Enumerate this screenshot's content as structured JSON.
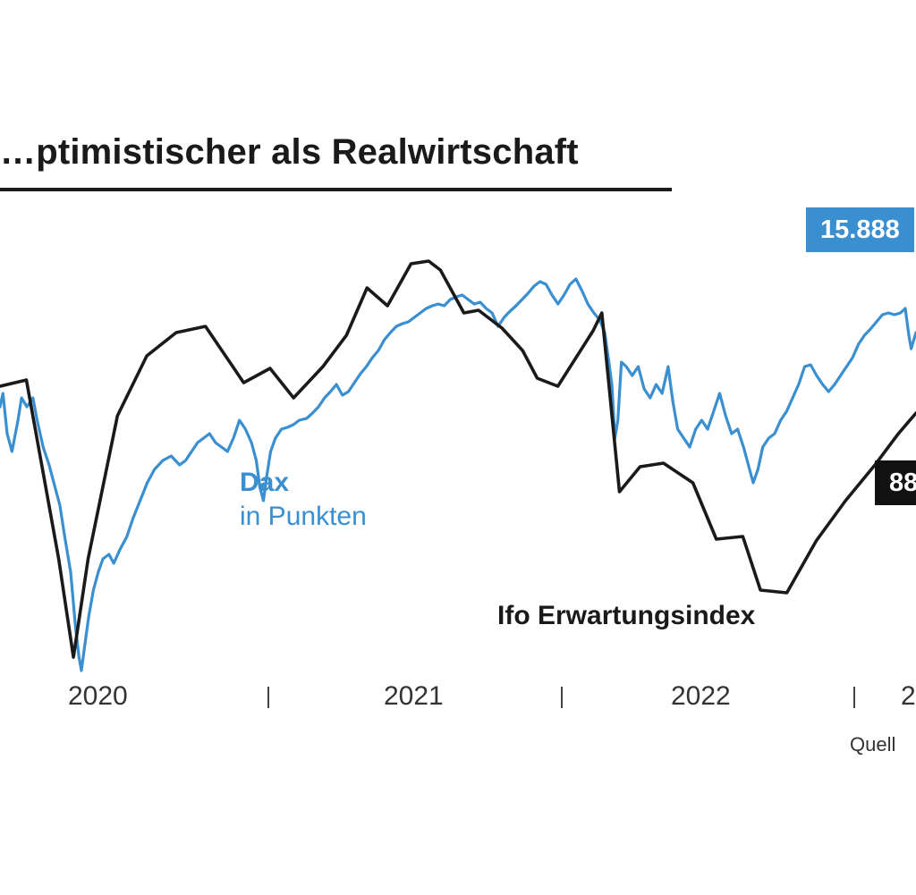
{
  "chart_data": {
    "type": "line",
    "title": "…ptimistischer als Realwirtschaft",
    "x_range": [
      "2019-12",
      "2023-01"
    ],
    "x_tick_labels": [
      "2020",
      "2021",
      "2022",
      "2"
    ],
    "xlabel": "",
    "ylabel": "",
    "series": [
      {
        "name": "Dax",
        "unit": "in Punkten",
        "color": "#3a8fd0",
        "end_label": "15.888",
        "points": [
          [
            0.0,
            455
          ],
          [
            0.05,
            440
          ],
          [
            0.12,
            485
          ],
          [
            0.2,
            505
          ],
          [
            0.3,
            470
          ],
          [
            0.36,
            445
          ],
          [
            0.45,
            455
          ],
          [
            0.55,
            445
          ],
          [
            0.62,
            470
          ],
          [
            0.72,
            500
          ],
          [
            0.82,
            520
          ],
          [
            0.9,
            540
          ],
          [
            1.0,
            565
          ],
          [
            1.08,
            600
          ],
          [
            1.18,
            640
          ],
          [
            1.26,
            700
          ],
          [
            1.32,
            735
          ],
          [
            1.36,
            750
          ],
          [
            1.42,
            720
          ],
          [
            1.48,
            690
          ],
          [
            1.56,
            660
          ],
          [
            1.64,
            640
          ],
          [
            1.72,
            625
          ],
          [
            1.82,
            620
          ],
          [
            1.9,
            630
          ],
          [
            2.0,
            615
          ],
          [
            2.12,
            600
          ],
          [
            2.22,
            580
          ],
          [
            2.34,
            560
          ],
          [
            2.46,
            540
          ],
          [
            2.58,
            525
          ],
          [
            2.72,
            515
          ],
          [
            2.86,
            510
          ],
          [
            3.0,
            520
          ],
          [
            3.1,
            515
          ],
          [
            3.2,
            505
          ],
          [
            3.3,
            495
          ],
          [
            3.4,
            490
          ],
          [
            3.5,
            485
          ],
          [
            3.6,
            495
          ],
          [
            3.7,
            500
          ],
          [
            3.8,
            505
          ],
          [
            3.9,
            490
          ],
          [
            4.0,
            470
          ],
          [
            4.1,
            480
          ],
          [
            4.2,
            495
          ],
          [
            4.28,
            515
          ],
          [
            4.34,
            545
          ],
          [
            4.4,
            560
          ],
          [
            4.45,
            535
          ],
          [
            4.52,
            505
          ],
          [
            4.6,
            490
          ],
          [
            4.7,
            480
          ],
          [
            4.8,
            478
          ],
          [
            4.9,
            475
          ],
          [
            5.0,
            470
          ],
          [
            5.12,
            468
          ],
          [
            5.22,
            462
          ],
          [
            5.32,
            455
          ],
          [
            5.42,
            445
          ],
          [
            5.52,
            438
          ],
          [
            5.62,
            430
          ],
          [
            5.72,
            442
          ],
          [
            5.82,
            438
          ],
          [
            5.92,
            428
          ],
          [
            6.02,
            418
          ],
          [
            6.12,
            410
          ],
          [
            6.22,
            400
          ],
          [
            6.32,
            392
          ],
          [
            6.42,
            380
          ],
          [
            6.52,
            372
          ],
          [
            6.62,
            365
          ],
          [
            6.72,
            362
          ],
          [
            6.82,
            360
          ],
          [
            6.92,
            355
          ],
          [
            7.02,
            350
          ],
          [
            7.12,
            345
          ],
          [
            7.22,
            342
          ],
          [
            7.32,
            340
          ],
          [
            7.42,
            342
          ],
          [
            7.52,
            335
          ],
          [
            7.62,
            332
          ],
          [
            7.72,
            330
          ],
          [
            7.82,
            335
          ],
          [
            7.92,
            340
          ],
          [
            8.02,
            338
          ],
          [
            8.12,
            345
          ],
          [
            8.22,
            350
          ],
          [
            8.32,
            365
          ],
          [
            8.42,
            355
          ],
          [
            8.52,
            348
          ],
          [
            8.62,
            342
          ],
          [
            8.72,
            335
          ],
          [
            8.82,
            328
          ],
          [
            8.92,
            320
          ],
          [
            9.02,
            315
          ],
          [
            9.12,
            318
          ],
          [
            9.22,
            330
          ],
          [
            9.32,
            340
          ],
          [
            9.42,
            330
          ],
          [
            9.52,
            318
          ],
          [
            9.62,
            312
          ],
          [
            9.72,
            325
          ],
          [
            9.82,
            340
          ],
          [
            9.92,
            350
          ],
          [
            10.02,
            358
          ],
          [
            10.1,
            372
          ],
          [
            10.16,
            400
          ],
          [
            10.22,
            430
          ],
          [
            10.27,
            490
          ],
          [
            10.32,
            470
          ],
          [
            10.38,
            405
          ],
          [
            10.46,
            410
          ],
          [
            10.56,
            420
          ],
          [
            10.66,
            410
          ],
          [
            10.76,
            435
          ],
          [
            10.86,
            445
          ],
          [
            10.96,
            430
          ],
          [
            11.06,
            440
          ],
          [
            11.16,
            410
          ],
          [
            11.24,
            450
          ],
          [
            11.32,
            480
          ],
          [
            11.42,
            490
          ],
          [
            11.52,
            500
          ],
          [
            11.62,
            480
          ],
          [
            11.72,
            470
          ],
          [
            11.82,
            480
          ],
          [
            11.92,
            460
          ],
          [
            12.02,
            440
          ],
          [
            12.12,
            465
          ],
          [
            12.22,
            485
          ],
          [
            12.32,
            480
          ],
          [
            12.42,
            500
          ],
          [
            12.5,
            520
          ],
          [
            12.58,
            540
          ],
          [
            12.66,
            525
          ],
          [
            12.74,
            500
          ],
          [
            12.84,
            490
          ],
          [
            12.94,
            485
          ],
          [
            13.04,
            470
          ],
          [
            13.14,
            460
          ],
          [
            13.24,
            445
          ],
          [
            13.34,
            430
          ],
          [
            13.44,
            410
          ],
          [
            13.54,
            408
          ],
          [
            13.64,
            420
          ],
          [
            13.74,
            430
          ],
          [
            13.84,
            438
          ],
          [
            13.94,
            430
          ],
          [
            14.04,
            420
          ],
          [
            14.14,
            410
          ],
          [
            14.24,
            400
          ],
          [
            14.34,
            385
          ],
          [
            14.44,
            375
          ],
          [
            14.54,
            368
          ],
          [
            14.64,
            360
          ],
          [
            14.74,
            352
          ],
          [
            14.84,
            350
          ],
          [
            14.94,
            352
          ],
          [
            15.04,
            350
          ],
          [
            15.12,
            345
          ],
          [
            15.18,
            375
          ],
          [
            15.22,
            390
          ],
          [
            15.3,
            372
          ]
        ]
      },
      {
        "name": "Ifo Erwartungsindex",
        "color": "#1a1a1a",
        "end_label": "88",
        "points": [
          [
            0.0,
            432
          ],
          [
            0.9,
            425
          ],
          [
            2.0,
            625
          ],
          [
            2.5,
            735
          ],
          [
            3.0,
            625
          ],
          [
            4.0,
            465
          ],
          [
            5.0,
            398
          ],
          [
            6.0,
            372
          ],
          [
            7.0,
            365
          ],
          [
            8.3,
            428
          ],
          [
            9.2,
            412
          ],
          [
            10.0,
            445
          ],
          [
            11.0,
            410
          ],
          [
            11.8,
            375
          ],
          [
            12.5,
            322
          ],
          [
            13.2,
            342
          ],
          [
            14.0,
            295
          ],
          [
            14.6,
            292
          ],
          [
            15.0,
            302
          ],
          [
            15.8,
            350
          ],
          [
            16.3,
            347
          ],
          [
            17.1,
            367
          ],
          [
            17.8,
            392
          ],
          [
            18.3,
            423
          ],
          [
            19.0,
            432
          ],
          [
            20.2,
            370
          ],
          [
            20.5,
            350
          ],
          [
            21.1,
            550
          ],
          [
            21.8,
            522
          ],
          [
            22.6,
            518
          ],
          [
            23.6,
            540
          ],
          [
            24.4,
            603
          ],
          [
            25.3,
            600
          ],
          [
            25.9,
            660
          ],
          [
            26.8,
            663
          ],
          [
            27.8,
            605
          ],
          [
            28.8,
            560
          ],
          [
            29.8,
            520
          ],
          [
            30.6,
            485
          ],
          [
            31.2,
            462
          ]
        ]
      }
    ],
    "source": "Quell"
  }
}
